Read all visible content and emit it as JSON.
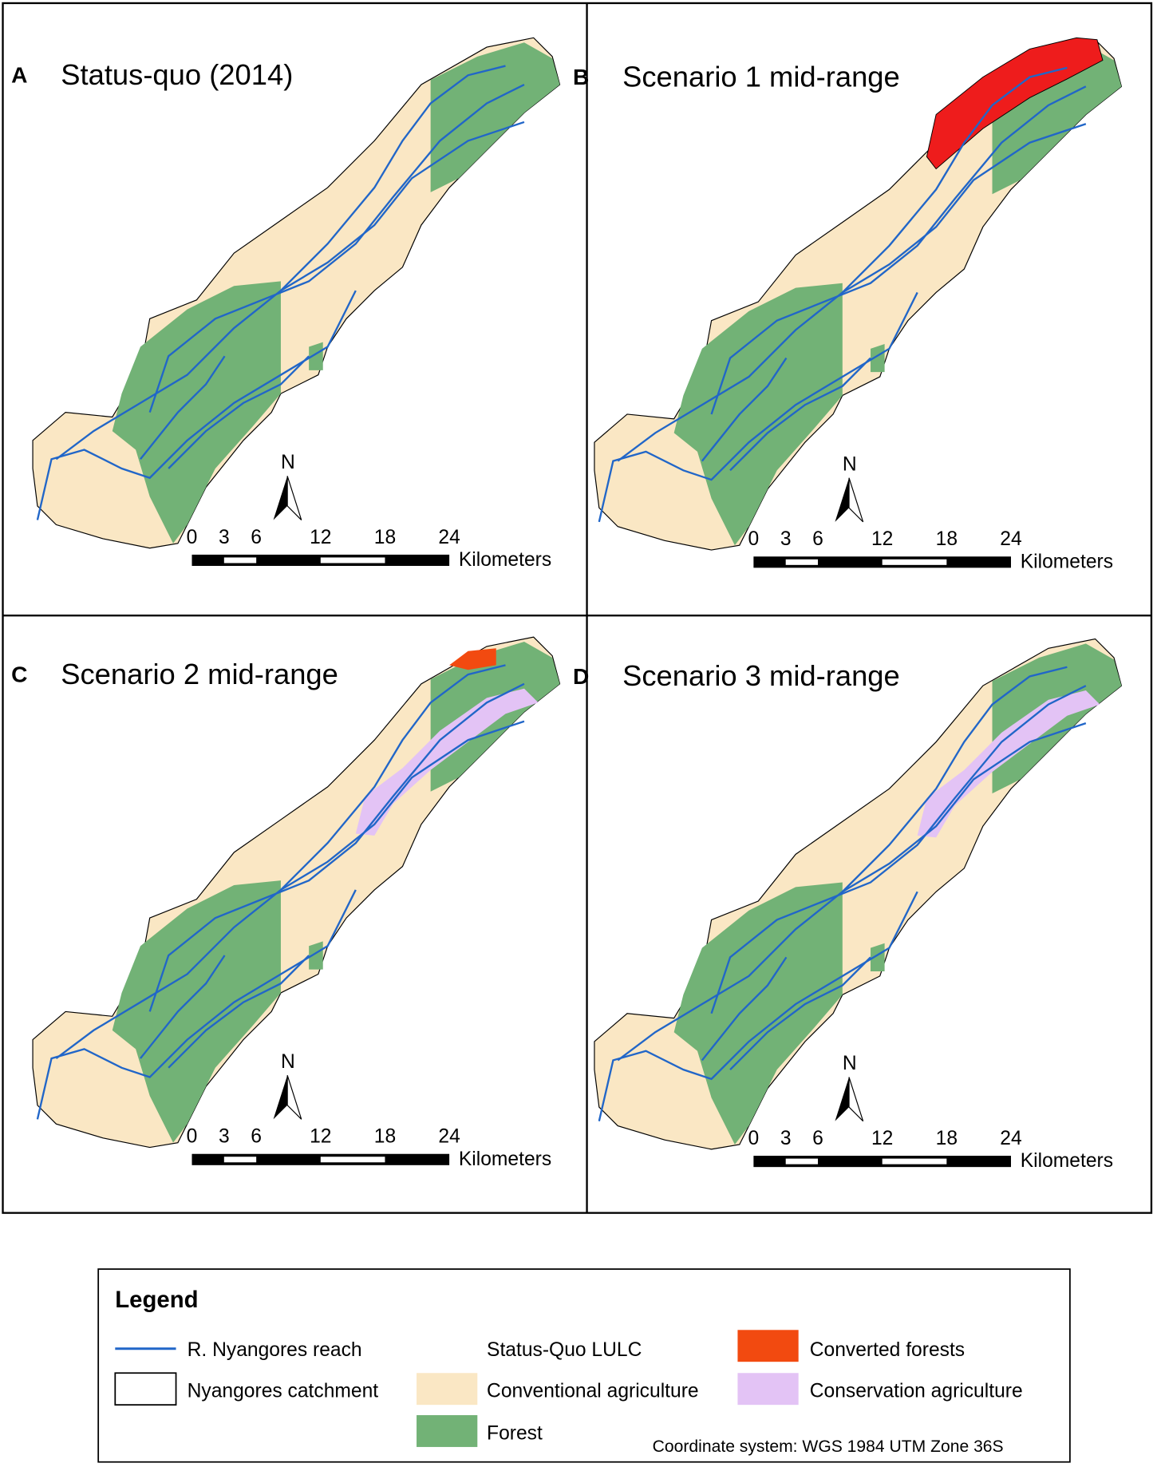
{
  "panels": [
    {
      "letter": "A",
      "title": "Status-quo (2014)",
      "north": "N",
      "scale": {
        "ticks": [
          0,
          3,
          6,
          12,
          18,
          24
        ],
        "unit": "Kilometers"
      }
    },
    {
      "letter": "B",
      "title": "Scenario 1 mid-range",
      "north": "N",
      "scale": {
        "ticks": [
          0,
          3,
          6,
          12,
          18,
          24
        ],
        "unit": "Kilometers"
      }
    },
    {
      "letter": "C",
      "title": "Scenario 2 mid-range",
      "north": "N",
      "scale": {
        "ticks": [
          0,
          3,
          6,
          12,
          18,
          24
        ],
        "unit": "Kilometers"
      }
    },
    {
      "letter": "D",
      "title": "Scenario 3 mid-range",
      "north": "N",
      "scale": {
        "ticks": [
          0,
          3,
          6,
          12,
          18,
          24
        ],
        "unit": "Kilometers"
      }
    }
  ],
  "legend": {
    "title": "Legend",
    "reach": "R. Nyangores reach",
    "catchment": "Nyangores catchment",
    "lulc_heading": "Status-Quo LULC",
    "conventional": "Conventional agriculture",
    "forest": "Forest",
    "converted": "Converted forests",
    "conservation": "Conservation agriculture"
  },
  "note": "Coordinate system: WGS 1984 UTM Zone 36S"
}
